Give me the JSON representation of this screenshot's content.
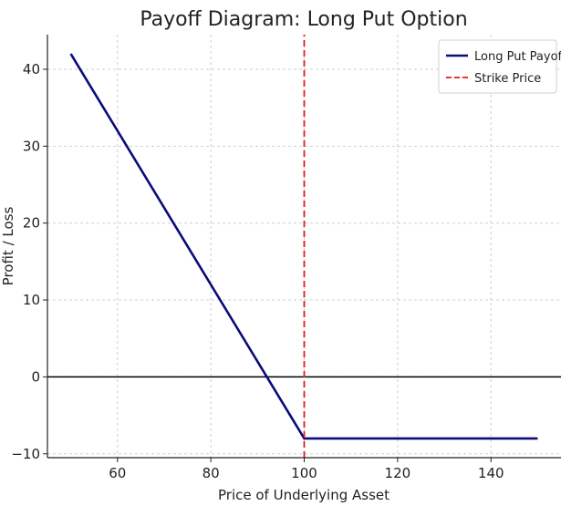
{
  "chart_data": {
    "type": "line",
    "title": "Payoff Diagram: Long Put Option",
    "xlabel": "Price of Underlying Asset",
    "ylabel": "Profit / Loss",
    "xlim": [
      45,
      155
    ],
    "ylim": [
      -10.5,
      44.5
    ],
    "xticks": [
      60,
      80,
      100,
      120,
      140
    ],
    "yticks": [
      -10,
      0,
      10,
      20,
      30,
      40
    ],
    "grid": true,
    "legend_position": "top-right",
    "series": [
      {
        "name": "Long Put Payoff",
        "style": "solid",
        "color": "#0b0b7a",
        "x": [
          50,
          100,
          150
        ],
        "y": [
          42,
          -8,
          -8
        ]
      },
      {
        "name": "Strike Price",
        "style": "dashed",
        "color": "#e31a1c",
        "x": [
          100,
          100
        ],
        "y": [
          -10.5,
          44.5
        ]
      }
    ],
    "reference_lines": [
      {
        "axis": "y",
        "value": 0,
        "color": "#000000"
      }
    ]
  }
}
